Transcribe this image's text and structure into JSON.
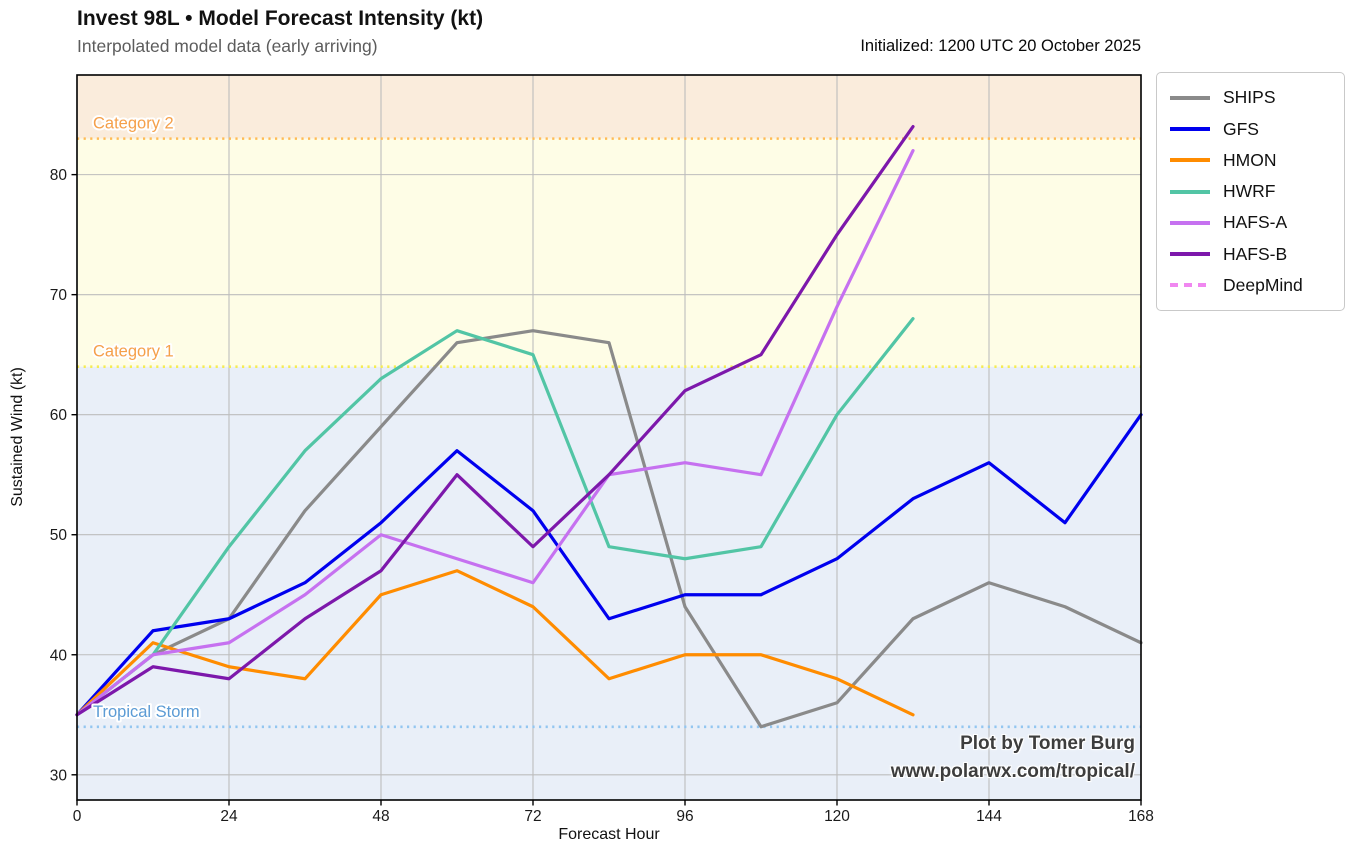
{
  "chart_data": {
    "type": "line",
    "title": "Invest 98L • Model Forecast Intensity (kt)",
    "subtitle": "Interpolated model data (early arriving)",
    "initialized": "Initialized: 1200 UTC 20 October 2025",
    "xlabel": "Forecast Hour",
    "ylabel": "Sustained Wind (kt)",
    "xlim": [
      0,
      168
    ],
    "ylim": [
      27.9,
      88.3
    ],
    "xticks": [
      0,
      24,
      48,
      72,
      96,
      120,
      144,
      168
    ],
    "yticks": [
      30,
      40,
      50,
      60,
      70,
      80
    ],
    "grid": true,
    "grid_color": "#bdbdbd",
    "legend_position": "outside upper right",
    "bands": [
      {
        "name": "above-category-2",
        "from": 83,
        "to": 88.3,
        "color": "#faecdc"
      },
      {
        "name": "category-1-to-2",
        "from": 64,
        "to": 83,
        "color": "#fefde6"
      },
      {
        "name": "below-category-1",
        "from": 27.9,
        "to": 64,
        "color": "#e9eff8"
      }
    ],
    "thresholds": [
      {
        "label": "Category 2",
        "value": 83,
        "line_color": "#ffbb55",
        "label_color": "#f5a04a"
      },
      {
        "label": "Category 1",
        "value": 64,
        "line_color": "#f5ec52",
        "label_color": "#f5a04a"
      },
      {
        "label": "Tropical Storm",
        "value": 34,
        "line_color": "#93c6f0",
        "label_color": "#5b9bd5"
      }
    ],
    "series": [
      {
        "name": "SHIPS",
        "color": "#8a8a8a",
        "dashed": false,
        "x": [
          0,
          12,
          24,
          36,
          48,
          60,
          72,
          84,
          96,
          108,
          120,
          132,
          144,
          156,
          168
        ],
        "values": [
          35,
          40,
          43,
          52,
          59,
          66,
          67,
          66,
          44,
          34,
          36,
          43,
          46,
          44,
          41
        ]
      },
      {
        "name": "GFS",
        "color": "#0000ee",
        "dashed": false,
        "x": [
          0,
          12,
          24,
          36,
          48,
          60,
          72,
          84,
          96,
          108,
          120,
          132,
          144,
          156,
          168
        ],
        "values": [
          35,
          42,
          43,
          46,
          51,
          57,
          52,
          43,
          45,
          45,
          48,
          53,
          56,
          51,
          60
        ]
      },
      {
        "name": "HMON",
        "color": "#ff8c00",
        "dashed": false,
        "x": [
          0,
          12,
          24,
          36,
          48,
          60,
          72,
          84,
          96,
          108,
          120,
          132
        ],
        "values": [
          35,
          41,
          39,
          38,
          45,
          47,
          44,
          38,
          40,
          40,
          38,
          35
        ]
      },
      {
        "name": "HWRF",
        "color": "#52c5a5",
        "dashed": false,
        "x": [
          0,
          12,
          24,
          36,
          48,
          60,
          72,
          84,
          96,
          108,
          120,
          132
        ],
        "values": [
          35,
          40,
          49,
          57,
          63,
          67,
          65,
          49,
          48,
          49,
          60,
          68
        ]
      },
      {
        "name": "HAFS-A",
        "color": "#c671f0",
        "dashed": false,
        "x": [
          0,
          12,
          24,
          36,
          48,
          60,
          72,
          84,
          96,
          108,
          120,
          132
        ],
        "values": [
          35,
          40,
          41,
          45,
          50,
          48,
          46,
          55,
          56,
          55,
          69,
          82
        ]
      },
      {
        "name": "HAFS-B",
        "color": "#7d18ab",
        "dashed": false,
        "x": [
          0,
          12,
          24,
          36,
          48,
          60,
          72,
          84,
          96,
          108,
          120,
          132
        ],
        "values": [
          35,
          39,
          38,
          43,
          47,
          55,
          49,
          55,
          62,
          65,
          75,
          84
        ]
      },
      {
        "name": "DeepMind",
        "color": "#f087f0",
        "dashed": true,
        "x": [],
        "values": []
      }
    ],
    "watermark": [
      "Plot by Tomer Burg",
      "www.polarwx.com/tropical/"
    ]
  }
}
